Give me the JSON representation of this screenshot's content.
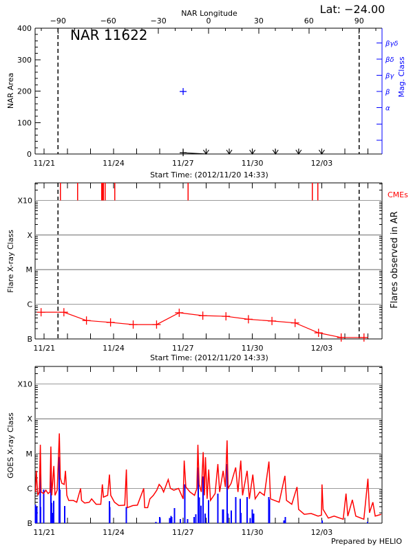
{
  "header": {
    "lat_label": "Lat: −24.00",
    "prepared_by": "Prepared by HELIO"
  },
  "colors": {
    "axes": "#000000",
    "grid": "#999999",
    "flare_series": "#ff0000",
    "cme": "#ff0000",
    "mag_class": "#0000ff",
    "goes_long": "#ff0000",
    "goes_short": "#0000ff"
  },
  "chart_data": [
    {
      "type": "line",
      "title": "NAR 11622",
      "xlabel": "Start Time: (2012/11/20 14:33)",
      "ylabel": "NAR Area",
      "y2label": "Mag. Class",
      "xlim": [
        "11/20 14:33",
        "12/05 14:33"
      ],
      "xticks": [
        "11/21 00:00",
        "11/22 00:00",
        "11/23 00:00",
        "11/24 00:00",
        "11/25 00:00",
        "11/26 00:00",
        "11/27 00:00",
        "11/28 00:00",
        "11/29 00:00",
        "11/30 00:00",
        "12/01 00:00",
        "12/02 00:00",
        "12/03 00:00",
        "12/04 00:00",
        "12/05 00:00"
      ],
      "xtick_labels": {
        "11/21 00:00": "11/21",
        "11/24 00:00": "11/24",
        "11/27 00:00": "11/27",
        "11/30 00:00": "11/30",
        "12/03 00:00": "12/03"
      },
      "ylim": [
        0,
        400
      ],
      "yticks": [
        0,
        100,
        200,
        300,
        400
      ],
      "ytick_labels": [
        "0",
        "100",
        "200",
        "300",
        "400"
      ],
      "grid": false,
      "top_axis": {
        "title": "NAR Longitude",
        "range": [
          -103.7,
          103.7
        ],
        "ticks": [
          -90,
          -60,
          -30,
          0,
          30,
          60,
          90
        ],
        "tick_labels": [
          "−90",
          "−60",
          "−30",
          "0",
          "30",
          "60",
          "90"
        ]
      },
      "limb_longitudes": [
        -90,
        90
      ],
      "area_series": {
        "points": [
          [
            "11/27 00:10",
            4
          ],
          [
            "11/28 00:00",
            0
          ]
        ],
        "upper_limit_points": [
          [
            "11/28 00:00",
            0
          ],
          [
            "11/29 00:00",
            0
          ],
          [
            "11/30 00:00",
            0
          ],
          [
            "12/01 00:00",
            0
          ],
          [
            "12/02 00:00",
            0
          ],
          [
            "12/03 00:00",
            0
          ]
        ]
      },
      "mag_class_axis": {
        "range": [
          0.15,
          7.9
        ],
        "levels": [
          1,
          2,
          3,
          4,
          5,
          6,
          7
        ],
        "labels": [
          "",
          "",
          "α",
          "β",
          "βγ",
          "βδ",
          "βγδ"
        ]
      },
      "mag_class_points": [
        [
          "11/27 00:10",
          "β"
        ]
      ]
    },
    {
      "type": "line",
      "xlabel": "Start Time: (2012/11/20 14:33)",
      "ylabel": "Flare X-ray Class",
      "y2label": "Flares observed in AR",
      "yscale": "log",
      "ylim": [
        1e-07,
        0.0032
      ],
      "yticks": [
        "B1",
        "C1",
        "M1",
        "X1",
        "X10"
      ],
      "ytick_labels": [
        "B",
        "C",
        "M",
        "X",
        "X10"
      ],
      "grid": true,
      "flare_series": [
        [
          "11/20 20:45",
          "B5.9"
        ],
        [
          "11/21 20:25",
          "B5.9"
        ],
        [
          "11/22 19:50",
          "B3.4"
        ],
        [
          "11/23 20:50",
          "B3.0"
        ],
        [
          "11/24 20:20",
          "B2.6"
        ],
        [
          "11/25 20:35",
          "B2.6"
        ],
        [
          "11/26 20:05",
          "B5.7"
        ],
        [
          "11/27 20:35",
          "B4.7"
        ],
        [
          "11/28 20:35",
          "B4.5"
        ],
        [
          "11/29 19:55",
          "B3.7"
        ],
        [
          "11/30 20:20",
          "B3.3"
        ],
        [
          "12/01 20:20",
          "B2.9"
        ],
        [
          "12/02 20:40",
          "B1.5"
        ],
        [
          "12/03 20:10",
          "B1.1"
        ],
        [
          "12/04 19:50",
          "B1.1"
        ]
      ],
      "cme_label": "CMEs",
      "cme_times": [
        "11/21 16:55",
        "11/22 10:40",
        "11/23 11:50",
        "11/23 13:15",
        "11/23 15:20",
        "11/24 01:10",
        "11/27 05:20",
        "12/02 14:15",
        "12/02 19:55"
      ]
    },
    {
      "type": "line",
      "ylabel": "GOES X-ray Class",
      "yscale": "log",
      "ylim": [
        1e-07,
        0.0032
      ],
      "yticks": [
        "B1",
        "C1",
        "M1",
        "X1",
        "X10"
      ],
      "ytick_labels": [
        "B",
        "C",
        "M",
        "X",
        "X10"
      ],
      "grid": true,
      "series": [
        {
          "color_key": "goes_long",
          "points": [
            [
              "11/20 15:00",
              "B7.9"
            ],
            [
              "11/20 15:45",
              "C3.2"
            ],
            [
              "11/20 17:25",
              "B6.3"
            ],
            [
              "11/20 19:00",
              "B7.9"
            ],
            [
              "11/20 20:00",
              "M1.8"
            ],
            [
              "11/20 20:45",
              "B7.9"
            ],
            [
              "11/20 23:20",
              "B7.1"
            ],
            [
              "11/21 01:40",
              "B8.9"
            ],
            [
              "11/21 04:05",
              "B7.1"
            ],
            [
              "11/21 06:00",
              "B7.9"
            ],
            [
              "11/21 06:55",
              "M1.6"
            ],
            [
              "11/21 07:50",
              "B6.3"
            ],
            [
              "11/21 10:00",
              "C4.4"
            ],
            [
              "11/21 11:10",
              "B6.3"
            ],
            [
              "11/21 13:30",
              "B8.9"
            ],
            [
              "11/21 15:40",
              "M3.8"
            ],
            [
              "11/21 16:40",
              "C2.0"
            ],
            [
              "11/21 18:20",
              "C1.4"
            ],
            [
              "11/21 20:40",
              "C1.3"
            ],
            [
              "11/21 22:05",
              "C3.2"
            ],
            [
              "11/21 23:30",
              "B6.3"
            ],
            [
              "11/22 01:25",
              "B4.5"
            ],
            [
              "11/22 06:10",
              "B4.5"
            ],
            [
              "11/22 09:45",
              "B4.0"
            ],
            [
              "11/22 13:45",
              "C1.0"
            ],
            [
              "11/22 14:45",
              "B4.5"
            ],
            [
              "11/22 18:00",
              "B3.8"
            ],
            [
              "11/22 22:50",
              "B4.0"
            ],
            [
              "11/23 01:10",
              "B5.0"
            ],
            [
              "11/23 05:55",
              "B3.5"
            ],
            [
              "11/23 10:40",
              "B3.5"
            ],
            [
              "11/23 12:20",
              "C1.3"
            ],
            [
              "11/23 13:30",
              "B5.6"
            ],
            [
              "11/23 17:50",
              "B6.3"
            ],
            [
              "11/23 19:40",
              "C2.5"
            ],
            [
              "11/23 21:05",
              "B6.3"
            ],
            [
              "11/24 00:55",
              "B4.0"
            ],
            [
              "11/24 05:35",
              "B3.2"
            ],
            [
              "11/24 11:35",
              "B3.3"
            ],
            [
              "11/24 13:15",
              "C3.5"
            ],
            [
              "11/24 14:10",
              "B2.8"
            ],
            [
              "11/24 19:55",
              "B3.2"
            ],
            [
              "11/25 00:40",
              "B3.3"
            ],
            [
              "11/25 07:15",
              "C1.0"
            ],
            [
              "11/25 08:15",
              "B2.8"
            ],
            [
              "11/25 11:20",
              "B2.8"
            ],
            [
              "11/25 13:40",
              "B5.0"
            ],
            [
              "11/25 17:15",
              "B6.3"
            ],
            [
              "11/25 20:50",
              "B8.9"
            ],
            [
              "11/25 23:15",
              "C1.3"
            ],
            [
              "11/26 01:35",
              "C1.1"
            ],
            [
              "11/26 03:55",
              "B7.9"
            ],
            [
              "11/26 08:40",
              "C1.8"
            ],
            [
              "11/26 11:00",
              "C1.0"
            ],
            [
              "11/26 14:35",
              "B8.9"
            ],
            [
              "11/26 19:25",
              "C1.0"
            ],
            [
              "11/27 00:10",
              "B5.0"
            ],
            [
              "11/27 01:15",
              "C6.3"
            ],
            [
              "11/27 03:00",
              "C1.1"
            ],
            [
              "11/27 07:15",
              "B7.9"
            ],
            [
              "11/27 12:00",
              "B6.3"
            ],
            [
              "11/27 14:25",
              "C1.0"
            ],
            [
              "11/27 15:30",
              "M1.8"
            ],
            [
              "11/27 16:45",
              "C1.3"
            ],
            [
              "11/27 19:05",
              "B7.9"
            ],
            [
              "11/27 21:00",
              "M1.1"
            ],
            [
              "11/27 22:15",
              "B6.3"
            ],
            [
              "11/27 23:20",
              "C7.9"
            ],
            [
              "11/28 01:05",
              "B5.0"
            ],
            [
              "11/28 02:40",
              "C3.5"
            ],
            [
              "11/28 04:35",
              "B4.5"
            ],
            [
              "11/28 09:20",
              "B7.1"
            ],
            [
              "11/28 12:10",
              "C5.0"
            ],
            [
              "11/28 14:05",
              "B7.9"
            ],
            [
              "11/28 17:40",
              "C3.2"
            ],
            [
              "11/28 20:00",
              "C1.1"
            ],
            [
              "11/28 21:45",
              "M2.4"
            ],
            [
              "11/28 22:50",
              "C1.0"
            ],
            [
              "11/29 02:00",
              "C1.4"
            ],
            [
              "11/29 06:40",
              "C4.0"
            ],
            [
              "11/29 09:05",
              "B7.9"
            ],
            [
              "11/29 12:00",
              "C6.3"
            ],
            [
              "11/29 13:50",
              "B6.3"
            ],
            [
              "11/29 18:35",
              "C3.2"
            ],
            [
              "11/29 20:55",
              "B5.0"
            ],
            [
              "11/30 00:30",
              "C2.5"
            ],
            [
              "11/30 02:55",
              "B5.0"
            ],
            [
              "11/30 07:40",
              "B7.9"
            ],
            [
              "11/30 12:25",
              "B6.3"
            ],
            [
              "11/30 17:10",
              "C5.9"
            ],
            [
              "11/30 18:50",
              "B5.0"
            ],
            [
              "11/30 23:05",
              "B4.5"
            ],
            [
              "12/01 03:50",
              "B4.0"
            ],
            [
              "12/01 09:45",
              "C2.3"
            ],
            [
              "12/01 11:25",
              "B4.5"
            ],
            [
              "12/01 16:55",
              "B3.5"
            ],
            [
              "12/01 22:20",
              "C1.1"
            ],
            [
              "12/02 00:00",
              "B2.5"
            ],
            [
              "12/02 05:55",
              "B1.8"
            ],
            [
              "12/02 13:00",
              "B1.9"
            ],
            [
              "12/02 20:10",
              "B1.6"
            ],
            [
              "12/02 23:40",
              "B1.7"
            ],
            [
              "12/03 00:15",
              "C1.3"
            ],
            [
              "12/03 01:25",
              "B2.5"
            ],
            [
              "12/03 06:50",
              "B1.4"
            ],
            [
              "12/03 12:50",
              "B1.6"
            ],
            [
              "12/03 18:45",
              "B1.4"
            ],
            [
              "12/03 22:15",
              "B1.3"
            ],
            [
              "12/04 01:10",
              "B7.1"
            ],
            [
              "12/04 03:05",
              "B1.6"
            ],
            [
              "12/04 07:45",
              "B4.7"
            ],
            [
              "12/04 11:20",
              "B1.6"
            ],
            [
              "12/04 19:40",
              "B1.3"
            ],
            [
              "12/04 23:55",
              "C1.9"
            ],
            [
              "12/05 01:35",
              "B2.0"
            ],
            [
              "12/05 05:05",
              "B4.0"
            ],
            [
              "12/05 07:30",
              "B1.6"
            ],
            [
              "12/05 13:40",
              "B1.8"
            ]
          ]
        },
        {
          "color_key": "goes_short",
          "style": "spikes",
          "points": [
            [
              "11/20 15:00",
              "B3.4"
            ],
            [
              "11/20 16:10",
              "B2.9"
            ],
            [
              "11/20 20:00",
              "C3.5"
            ],
            [
              "11/20 20:25",
              "B2.9"
            ],
            [
              "11/20 23:20",
              "B9.3"
            ],
            [
              "11/21 06:55",
              "C3.2"
            ],
            [
              "11/21 07:50",
              "B3.8"
            ],
            [
              "11/21 09:15",
              "B2.0"
            ],
            [
              "11/21 10:00",
              "B4.4"
            ],
            [
              "11/21 15:40",
              "C8.1"
            ],
            [
              "11/21 16:25",
              "B9.3"
            ],
            [
              "11/21 21:20",
              "B3.1"
            ],
            [
              "11/23 19:40",
              "B4.3"
            ],
            [
              "11/23 20:10",
              "B2.9"
            ],
            [
              "11/24 13:15",
              "B2.9"
            ],
            [
              "11/25 20:05",
              "B1.1"
            ],
            [
              "11/25 23:40",
              "B1.5"
            ],
            [
              "11/26 00:20",
              "B1.4"
            ],
            [
              "11/26 10:20",
              "B1.4"
            ],
            [
              "11/26 11:45",
              "B1.6"
            ],
            [
              "11/26 12:30",
              "B1.5"
            ],
            [
              "11/26 15:20",
              "B2.7"
            ],
            [
              "11/26 21:20",
              "B1.3"
            ],
            [
              "11/27 02:00",
              "C1.3"
            ],
            [
              "11/27 04:50",
              "B1.3"
            ],
            [
              "11/27 11:35",
              "B1.5"
            ],
            [
              "11/27 13:15",
              "B1.8"
            ],
            [
              "11/27 15:50",
              "C4.0"
            ],
            [
              "11/27 16:45",
              "B5.5"
            ],
            [
              "11/27 18:40",
              "B3.2"
            ],
            [
              "11/27 21:00",
              "C2.2"
            ],
            [
              "11/27 22:55",
              "B1.9"
            ],
            [
              "11/28 02:40",
              "B4.6"
            ],
            [
              "11/28 12:10",
              "B7.1"
            ],
            [
              "11/28 17:10",
              "B2.5"
            ],
            [
              "11/28 17:55",
              "B2.5"
            ],
            [
              "11/28 21:45",
              "C5.0"
            ],
            [
              "11/28 22:25",
              "B1.9"
            ],
            [
              "11/29 02:15",
              "B2.3"
            ],
            [
              "11/29 06:40",
              "B5.6"
            ],
            [
              "11/29 11:30",
              "B5.0"
            ],
            [
              "11/29 12:10",
              "B2.0"
            ],
            [
              "11/29 18:35",
              "B5.6"
            ],
            [
              "11/29 21:40",
              "B1.4"
            ],
            [
              "11/29 23:50",
              "B2.5"
            ],
            [
              "11/30 01:15",
              "B1.9"
            ],
            [
              "11/30 17:10",
              "B5.6"
            ],
            [
              "11/30 17:55",
              "B4.8"
            ],
            [
              "12/01 08:40",
              "B1.2"
            ],
            [
              "12/01 10:05",
              "B1.5"
            ],
            [
              "12/03 00:15",
              "B1.2"
            ],
            [
              "12/04 23:25",
              "B1.1"
            ]
          ]
        }
      ]
    }
  ]
}
